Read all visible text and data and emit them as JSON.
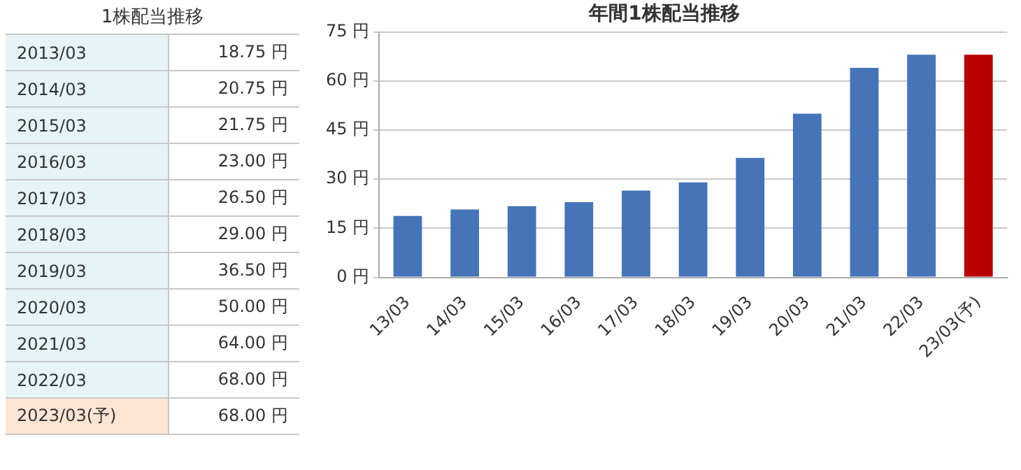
{
  "chart_data": [
    {
      "type": "other",
      "title": "1株配当推移",
      "categories": [
        "2013/03",
        "2014/03",
        "2015/03",
        "2016/03",
        "2017/03",
        "2018/03",
        "2019/03",
        "2020/03",
        "2021/03",
        "2022/03",
        "2023/03(予)"
      ],
      "value_labels": [
        "18.75 円",
        "20.75 円",
        "21.75 円",
        "23.00 円",
        "26.50 円",
        "29.00 円",
        "36.50 円",
        "50.00 円",
        "64.00 円",
        "68.00 円",
        "68.00 円"
      ],
      "colors": [
        "#e6f3f7",
        "#e6f3f7",
        "#e6f3f7",
        "#e6f3f7",
        "#e6f3f7",
        "#e6f3f7",
        "#e6f3f7",
        "#e6f3f7",
        "#e6f3f7",
        "#e6f3f7",
        "#fde5d4"
      ]
    },
    {
      "type": "bar",
      "title": "年間1株配当推移",
      "categories": [
        "13/03",
        "14/03",
        "15/03",
        "16/03",
        "17/03",
        "18/03",
        "19/03",
        "20/03",
        "21/03",
        "22/03",
        "23/03(予)"
      ],
      "values": [
        18.75,
        20.75,
        21.75,
        23.0,
        26.5,
        29.0,
        36.5,
        50.0,
        64.0,
        68.0,
        68.0
      ],
      "colors": [
        "#4674b8",
        "#4674b8",
        "#4674b8",
        "#4674b8",
        "#4674b8",
        "#4674b8",
        "#4674b8",
        "#4674b8",
        "#4674b8",
        "#4674b8",
        "#b80000"
      ],
      "ylim": [
        0,
        75
      ],
      "yticks": [
        {
          "value": 0,
          "label": "0 円"
        },
        {
          "value": 15,
          "label": "15 円"
        },
        {
          "value": 30,
          "label": "30 円"
        },
        {
          "value": 45,
          "label": "45 円"
        },
        {
          "value": 60,
          "label": "60 円"
        },
        {
          "value": 75,
          "label": "75 円"
        }
      ],
      "grid": "y"
    }
  ]
}
